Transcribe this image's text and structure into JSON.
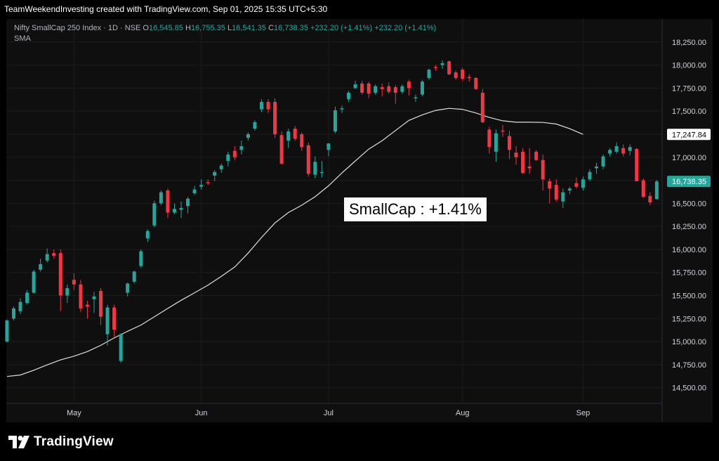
{
  "header": {
    "caption": "TeamWeekendInvesting created with TradingView.com, Sep 01, 2025 15:35 UTC+5:30"
  },
  "legend": {
    "symbol": "Nifty SmallCap 250 Index · 1D · NSE",
    "o_label": "O",
    "o_value": "16,545.85",
    "h_label": "H",
    "h_value": "16,755.35",
    "l_label": "L",
    "l_value": "16,541.35",
    "c_label": "C",
    "c_value": "16,738.35",
    "change1": "+232.20 (+1.41%)",
    "change2": "+232.20 (+1.41%)",
    "sma_label": "SMA"
  },
  "annotation": "SmallCap : +1.41%",
  "footer": {
    "brand": "TradingView"
  },
  "colors": {
    "up": "#26a69a",
    "down": "#f23645",
    "sma": "#e0e0e0",
    "bg": "#0f0f0f",
    "grid": "#1c1c1c"
  },
  "chart_data": {
    "type": "candlestick",
    "title": "Nifty SmallCap 250 Index · 1D · NSE",
    "y_ticks": [
      "18,250.00",
      "18,000.00",
      "17,750.00",
      "17,500.00",
      "17,250.00",
      "17,000.00",
      "16,750.00",
      "16,500.00",
      "16,250.00",
      "16,000.00",
      "15,750.00",
      "15,500.00",
      "15,250.00",
      "15,000.00",
      "14,750.00",
      "14,500.00"
    ],
    "ylim": [
      14330,
      18500
    ],
    "x_ticks": [
      {
        "label": "May",
        "day": 10
      },
      {
        "label": "Jun",
        "day": 29
      },
      {
        "label": "Jul",
        "day": 48
      },
      {
        "label": "Aug",
        "day": 68
      },
      {
        "label": "Sep",
        "day": 86
      }
    ],
    "x_range_days": [
      -0.1,
      97.8
    ],
    "price_labels": [
      {
        "name": "sma-last",
        "text": "17,247.84",
        "value": 17247.84,
        "style": "sma"
      },
      {
        "name": "last-close",
        "text": "16,738.35",
        "value": 16738.35,
        "style": "up"
      }
    ],
    "candles": [
      {
        "o": 15000,
        "h": 15240,
        "l": 14990,
        "c": 15230
      },
      {
        "o": 15250,
        "h": 15380,
        "l": 15230,
        "c": 15360
      },
      {
        "o": 15330,
        "h": 15470,
        "l": 15300,
        "c": 15430
      },
      {
        "o": 15420,
        "h": 15560,
        "l": 15400,
        "c": 15530
      },
      {
        "o": 15530,
        "h": 15780,
        "l": 15520,
        "c": 15760
      },
      {
        "o": 15780,
        "h": 15900,
        "l": 15760,
        "c": 15840
      },
      {
        "o": 15880,
        "h": 16010,
        "l": 15860,
        "c": 15950
      },
      {
        "o": 15960,
        "h": 16000,
        "l": 15900,
        "c": 15930
      },
      {
        "o": 15960,
        "h": 16000,
        "l": 15330,
        "c": 15500
      },
      {
        "o": 15500,
        "h": 15620,
        "l": 15420,
        "c": 15580
      },
      {
        "o": 15670,
        "h": 15740,
        "l": 15560,
        "c": 15620
      },
      {
        "o": 15620,
        "h": 15670,
        "l": 15320,
        "c": 15360
      },
      {
        "o": 15400,
        "h": 15440,
        "l": 15250,
        "c": 15380
      },
      {
        "o": 15460,
        "h": 15540,
        "l": 15310,
        "c": 15490
      },
      {
        "o": 15550,
        "h": 15580,
        "l": 15180,
        "c": 15270
      },
      {
        "o": 15080,
        "h": 15400,
        "l": 14960,
        "c": 15370
      },
      {
        "o": 15370,
        "h": 15400,
        "l": 15050,
        "c": 15130
      },
      {
        "o": 14790,
        "h": 15090,
        "l": 14770,
        "c": 15080
      },
      {
        "o": 15530,
        "h": 15640,
        "l": 15490,
        "c": 15630
      },
      {
        "o": 15650,
        "h": 15770,
        "l": 15630,
        "c": 15760
      },
      {
        "o": 15820,
        "h": 16000,
        "l": 15800,
        "c": 15980
      },
      {
        "o": 16120,
        "h": 16220,
        "l": 16080,
        "c": 16200
      },
      {
        "o": 16260,
        "h": 16530,
        "l": 16240,
        "c": 16500
      },
      {
        "o": 16500,
        "h": 16640,
        "l": 16480,
        "c": 16620
      },
      {
        "o": 16640,
        "h": 16660,
        "l": 16340,
        "c": 16400
      },
      {
        "o": 16400,
        "h": 16500,
        "l": 16380,
        "c": 16440
      },
      {
        "o": 16430,
        "h": 16520,
        "l": 16340,
        "c": 16450
      },
      {
        "o": 16470,
        "h": 16570,
        "l": 16390,
        "c": 16550
      },
      {
        "o": 16610,
        "h": 16690,
        "l": 16590,
        "c": 16650
      },
      {
        "o": 16680,
        "h": 16760,
        "l": 16650,
        "c": 16700
      },
      {
        "o": 16730,
        "h": 16760,
        "l": 16700,
        "c": 16720
      },
      {
        "o": 16800,
        "h": 16860,
        "l": 16740,
        "c": 16840
      },
      {
        "o": 16870,
        "h": 16930,
        "l": 16830,
        "c": 16910
      },
      {
        "o": 16960,
        "h": 17060,
        "l": 16900,
        "c": 17030
      },
      {
        "o": 17070,
        "h": 17120,
        "l": 16970,
        "c": 17000
      },
      {
        "o": 17080,
        "h": 17180,
        "l": 17030,
        "c": 17120
      },
      {
        "o": 17210,
        "h": 17270,
        "l": 17180,
        "c": 17250
      },
      {
        "o": 17310,
        "h": 17400,
        "l": 17290,
        "c": 17380
      },
      {
        "o": 17520,
        "h": 17630,
        "l": 17490,
        "c": 17600
      },
      {
        "o": 17600,
        "h": 17630,
        "l": 17480,
        "c": 17520
      },
      {
        "o": 17600,
        "h": 17640,
        "l": 17210,
        "c": 17250
      },
      {
        "o": 17240,
        "h": 17280,
        "l": 16920,
        "c": 16930
      },
      {
        "o": 17180,
        "h": 17310,
        "l": 17100,
        "c": 17280
      },
      {
        "o": 17310,
        "h": 17340,
        "l": 17180,
        "c": 17200
      },
      {
        "o": 17250,
        "h": 17270,
        "l": 17070,
        "c": 17110
      },
      {
        "o": 17130,
        "h": 17160,
        "l": 16790,
        "c": 16820
      },
      {
        "o": 16810,
        "h": 17010,
        "l": 16770,
        "c": 16950
      },
      {
        "o": 16840,
        "h": 16960,
        "l": 16780,
        "c": 16840
      },
      {
        "o": 17080,
        "h": 17130,
        "l": 17010,
        "c": 17150
      },
      {
        "o": 17280,
        "h": 17550,
        "l": 17260,
        "c": 17510
      },
      {
        "o": 17520,
        "h": 17560,
        "l": 17480,
        "c": 17530
      },
      {
        "o": 17630,
        "h": 17720,
        "l": 17600,
        "c": 17700
      },
      {
        "o": 17750,
        "h": 17830,
        "l": 17740,
        "c": 17790
      },
      {
        "o": 17800,
        "h": 17830,
        "l": 17680,
        "c": 17700
      },
      {
        "o": 17800,
        "h": 17820,
        "l": 17640,
        "c": 17690
      },
      {
        "o": 17700,
        "h": 17790,
        "l": 17680,
        "c": 17770
      },
      {
        "o": 17760,
        "h": 17800,
        "l": 17660,
        "c": 17740
      },
      {
        "o": 17770,
        "h": 17810,
        "l": 17690,
        "c": 17710
      },
      {
        "o": 17760,
        "h": 17780,
        "l": 17580,
        "c": 17700
      },
      {
        "o": 17710,
        "h": 17790,
        "l": 17690,
        "c": 17770
      },
      {
        "o": 17820,
        "h": 17840,
        "l": 17670,
        "c": 17750
      },
      {
        "o": 17650,
        "h": 17680,
        "l": 17600,
        "c": 17650
      },
      {
        "o": 17680,
        "h": 17840,
        "l": 17660,
        "c": 17820
      },
      {
        "o": 17860,
        "h": 17960,
        "l": 17840,
        "c": 17950
      },
      {
        "o": 17980,
        "h": 18000,
        "l": 17940,
        "c": 17970
      },
      {
        "o": 18000,
        "h": 18050,
        "l": 17960,
        "c": 18020
      },
      {
        "o": 18040,
        "h": 18050,
        "l": 17890,
        "c": 17900
      },
      {
        "o": 17920,
        "h": 17940,
        "l": 17840,
        "c": 17860
      },
      {
        "o": 17950,
        "h": 17970,
        "l": 17830,
        "c": 17850
      },
      {
        "o": 17870,
        "h": 17900,
        "l": 17820,
        "c": 17860
      },
      {
        "o": 17860,
        "h": 17870,
        "l": 17730,
        "c": 17740
      },
      {
        "o": 17700,
        "h": 17740,
        "l": 17370,
        "c": 17380
      },
      {
        "o": 17300,
        "h": 17330,
        "l": 17040,
        "c": 17110
      },
      {
        "o": 17060,
        "h": 17300,
        "l": 16950,
        "c": 17260
      },
      {
        "o": 17290,
        "h": 17350,
        "l": 17220,
        "c": 17280
      },
      {
        "o": 17230,
        "h": 17290,
        "l": 16980,
        "c": 17080
      },
      {
        "o": 17050,
        "h": 17120,
        "l": 16920,
        "c": 17000
      },
      {
        "o": 17060,
        "h": 17100,
        "l": 16820,
        "c": 16830
      },
      {
        "o": 16900,
        "h": 17100,
        "l": 16820,
        "c": 16880
      },
      {
        "o": 17060,
        "h": 17080,
        "l": 16960,
        "c": 16970
      },
      {
        "o": 16970,
        "h": 17030,
        "l": 16640,
        "c": 16760
      },
      {
        "o": 16740,
        "h": 16770,
        "l": 16500,
        "c": 16660
      },
      {
        "o": 16700,
        "h": 16760,
        "l": 16520,
        "c": 16540
      },
      {
        "o": 16520,
        "h": 16660,
        "l": 16450,
        "c": 16620
      },
      {
        "o": 16640,
        "h": 16680,
        "l": 16600,
        "c": 16660
      },
      {
        "o": 16720,
        "h": 16780,
        "l": 16660,
        "c": 16680
      },
      {
        "o": 16670,
        "h": 16790,
        "l": 16640,
        "c": 16760
      },
      {
        "o": 16760,
        "h": 16870,
        "l": 16740,
        "c": 16840
      },
      {
        "o": 16880,
        "h": 16940,
        "l": 16820,
        "c": 16900
      },
      {
        "o": 16900,
        "h": 17030,
        "l": 16870,
        "c": 17010
      },
      {
        "o": 17040,
        "h": 17100,
        "l": 17010,
        "c": 17080
      },
      {
        "o": 17060,
        "h": 17160,
        "l": 17040,
        "c": 17120
      },
      {
        "o": 17100,
        "h": 17140,
        "l": 17010,
        "c": 17040
      },
      {
        "o": 17070,
        "h": 17140,
        "l": 17020,
        "c": 17110
      },
      {
        "o": 17090,
        "h": 17100,
        "l": 16740,
        "c": 16740
      },
      {
        "o": 16750,
        "h": 16770,
        "l": 16560,
        "c": 16570
      },
      {
        "o": 16580,
        "h": 16620,
        "l": 16480,
        "c": 16510
      },
      {
        "o": 16546,
        "h": 16755,
        "l": 16541,
        "c": 16738
      }
    ],
    "sma": [
      {
        "x": 0,
        "y": 14622
      },
      {
        "x": 2,
        "y": 14638
      },
      {
        "x": 4,
        "y": 14690
      },
      {
        "x": 6,
        "y": 14748
      },
      {
        "x": 8,
        "y": 14802
      },
      {
        "x": 10,
        "y": 14842
      },
      {
        "x": 12,
        "y": 14892
      },
      {
        "x": 14,
        "y": 14960
      },
      {
        "x": 16,
        "y": 15040
      },
      {
        "x": 18,
        "y": 15112
      },
      {
        "x": 20,
        "y": 15180
      },
      {
        "x": 22,
        "y": 15270
      },
      {
        "x": 24,
        "y": 15360
      },
      {
        "x": 26,
        "y": 15448
      },
      {
        "x": 28,
        "y": 15530
      },
      {
        "x": 30,
        "y": 15612
      },
      {
        "x": 32,
        "y": 15708
      },
      {
        "x": 34,
        "y": 15810
      },
      {
        "x": 36,
        "y": 15960
      },
      {
        "x": 38,
        "y": 16130
      },
      {
        "x": 40,
        "y": 16288
      },
      {
        "x": 42,
        "y": 16400
      },
      {
        "x": 44,
        "y": 16480
      },
      {
        "x": 46,
        "y": 16572
      },
      {
        "x": 48,
        "y": 16690
      },
      {
        "x": 50,
        "y": 16830
      },
      {
        "x": 52,
        "y": 16960
      },
      {
        "x": 54,
        "y": 17088
      },
      {
        "x": 56,
        "y": 17180
      },
      {
        "x": 58,
        "y": 17290
      },
      {
        "x": 60,
        "y": 17400
      },
      {
        "x": 62,
        "y": 17460
      },
      {
        "x": 64,
        "y": 17508
      },
      {
        "x": 66,
        "y": 17530
      },
      {
        "x": 68,
        "y": 17520
      },
      {
        "x": 70,
        "y": 17480
      },
      {
        "x": 72,
        "y": 17432
      },
      {
        "x": 74,
        "y": 17395
      },
      {
        "x": 76,
        "y": 17380
      },
      {
        "x": 78,
        "y": 17380
      },
      {
        "x": 80,
        "y": 17378
      },
      {
        "x": 82,
        "y": 17360
      },
      {
        "x": 84,
        "y": 17310
      },
      {
        "x": 86,
        "y": 17248
      }
    ]
  }
}
